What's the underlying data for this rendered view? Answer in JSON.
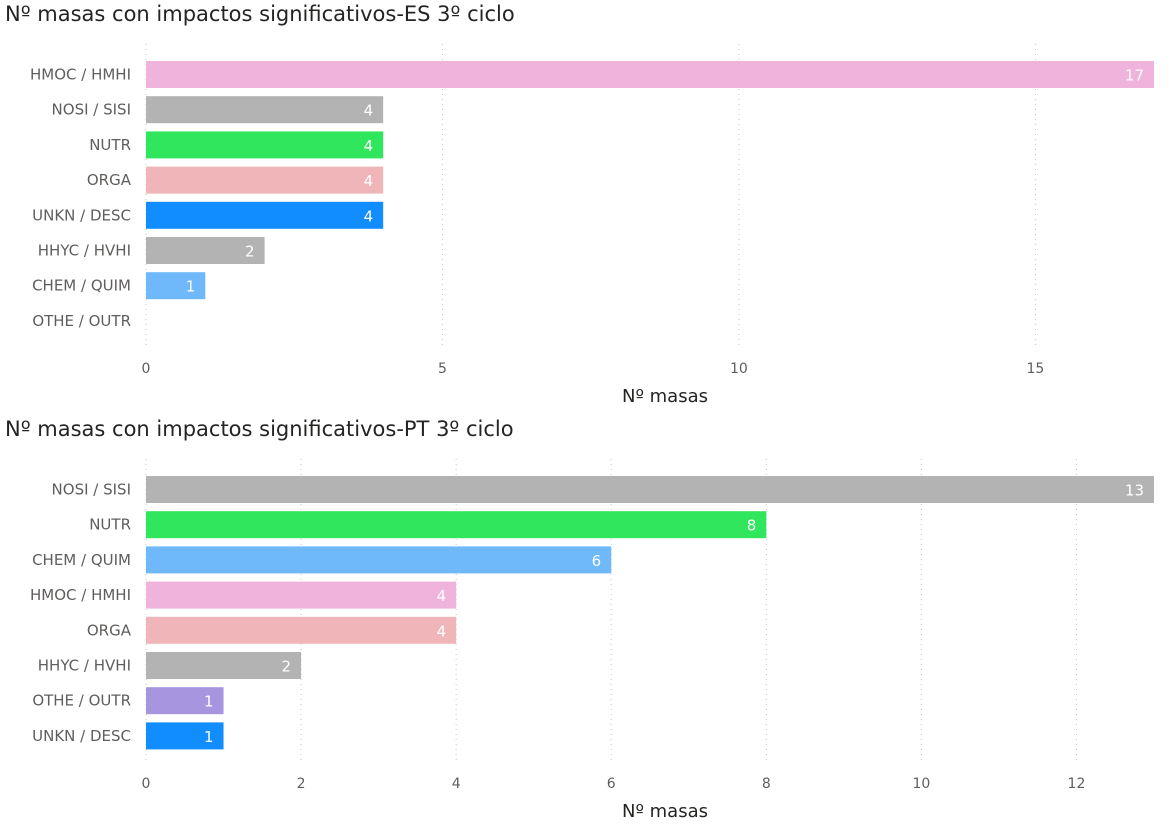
{
  "chart_data": [
    {
      "type": "bar",
      "orientation": "horizontal",
      "title": "Nº masas con impactos significativos-ES 3º ciclo",
      "xlabel": "Nº masas",
      "ylabel": "",
      "xlim": [
        0,
        17
      ],
      "x_ticks": [
        0,
        5,
        10,
        15
      ],
      "grid": true,
      "categories": [
        "HMOC / HMHI",
        "NOSI / SISI",
        "NUTR",
        "ORGA",
        "UNKN / DESC",
        "HHYC / HVHI",
        "CHEM / QUIM",
        "OTHE / OUTR"
      ],
      "values": [
        17,
        4,
        4,
        4,
        4,
        2,
        1,
        null
      ],
      "colors": [
        "#f0b3dc",
        "#b3b3b3",
        "#30e65c",
        "#efb5b9",
        "#118dff",
        "#b3b3b3",
        "#6fb9fb",
        "#a895e0"
      ]
    },
    {
      "type": "bar",
      "orientation": "horizontal",
      "title": "Nº masas con impactos significativos-PT 3º ciclo",
      "xlabel": "Nº masas",
      "ylabel": "",
      "xlim": [
        0,
        13
      ],
      "x_ticks": [
        0,
        2,
        4,
        6,
        8,
        10,
        12
      ],
      "grid": true,
      "categories": [
        "NOSI / SISI",
        "NUTR",
        "CHEM / QUIM",
        "HMOC / HMHI",
        "ORGA",
        "HHYC / HVHI",
        "OTHE / OUTR",
        "UNKN / DESC"
      ],
      "values": [
        13,
        8,
        6,
        4,
        4,
        2,
        1,
        1
      ],
      "colors": [
        "#b3b3b3",
        "#30e65c",
        "#6fb9fb",
        "#f0b3dc",
        "#efb5b9",
        "#b3b3b3",
        "#a895e0",
        "#118dff"
      ]
    }
  ]
}
